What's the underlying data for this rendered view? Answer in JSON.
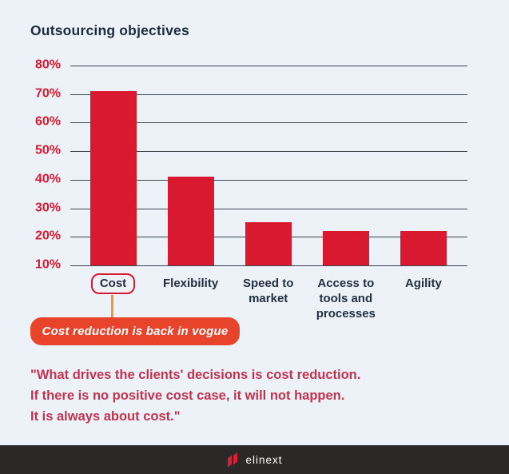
{
  "title": "Outsourcing objectives",
  "chart_data": {
    "type": "bar",
    "title": "Outsourcing objectives",
    "categories": [
      "Cost",
      "Flexibility",
      "Speed to market",
      "Access to tools and processes",
      "Agility"
    ],
    "values": [
      71,
      41,
      25,
      22,
      22
    ],
    "unit": "%",
    "xlabel": "",
    "ylabel": "",
    "ylim": [
      10,
      80
    ],
    "y_ticks": [
      80,
      70,
      60,
      50,
      40,
      30,
      20,
      10
    ],
    "grid": true,
    "legend": false,
    "highlight_category": "Cost"
  },
  "callout": {
    "text": "Cost reduction is back in vogue"
  },
  "quote": {
    "lines": [
      "\"What drives the clients' decisions is cost reduction.",
      "If there is no positive cost case, it will not happen.",
      "It is always about cost.\""
    ]
  },
  "footer": {
    "brand": "elinext"
  },
  "colors": {
    "background": "#edf1f8",
    "bar": "#d9192f",
    "axis_label": "#d9192f",
    "gridline": "#3a4450",
    "title_text": "#1e2b3c",
    "category_text": "#22303f",
    "callout_bg": "#e8432b",
    "callout_text": "#ffffff",
    "connector": "#f2992b",
    "quote_text": "#c23350",
    "footer_bg": "#2a2928",
    "logo_red": "#e11b38"
  }
}
